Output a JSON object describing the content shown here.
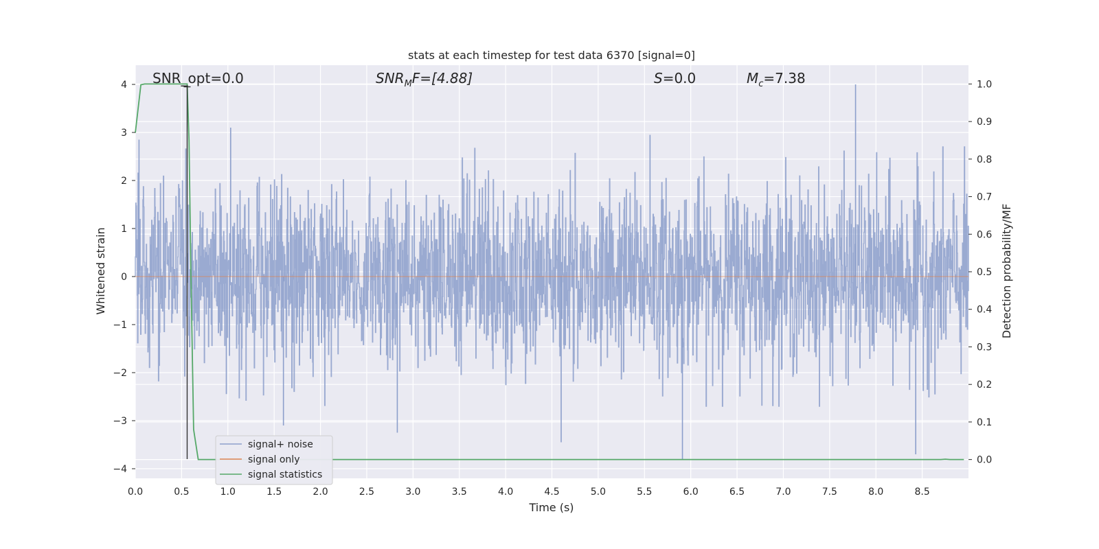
{
  "chart_data": {
    "type": "line",
    "title": "stats at each timestep for test data 6370 [signal=0]",
    "xlabel": "Time (s)",
    "ylabel": "Whitened strain",
    "y2label": "Detection probability/MF",
    "xlim": [
      0.0,
      9.0
    ],
    "ylim": [
      -4.2,
      4.4
    ],
    "y2lim": [
      -0.05,
      1.05
    ],
    "xticks": [
      "0.0",
      "0.5",
      "1.0",
      "1.5",
      "2.0",
      "2.5",
      "3.0",
      "3.5",
      "4.0",
      "4.5",
      "5.0",
      "5.5",
      "6.0",
      "6.5",
      "7.0",
      "7.5",
      "8.0",
      "8.5"
    ],
    "yticks": [
      "4",
      "3",
      "2",
      "1",
      "0",
      "−1",
      "−2",
      "−3",
      "−4"
    ],
    "y2ticks": [
      "1.0",
      "0.9",
      "0.8",
      "0.7",
      "0.6",
      "0.5",
      "0.4",
      "0.3",
      "0.2",
      "0.1",
      "0.0"
    ],
    "grid": true,
    "legend_position": "lower-left",
    "annotations": {
      "snr_opt": "SNR_opt=0.0",
      "snr_mf_main": "SNR",
      "snr_mf_sub": "M",
      "snr_mf_rest": "F=[4.88]",
      "s_main": "S",
      "s_rest": "=0.0",
      "mc_main": "M",
      "mc_sub": "c",
      "mc_rest": "=7.38"
    },
    "marker": {
      "x": 0.56,
      "ymin": -3.8,
      "ymax": 3.95
    },
    "series": [
      {
        "name": "signal+ noise",
        "axis": "left",
        "color": "#8c9fcb",
        "noise_summary": {
          "typical_abs": 1.6,
          "peaks": [
            {
              "x": 0.04,
              "y": 2.85
            },
            {
              "x": 1.03,
              "y": 3.1
            },
            {
              "x": 1.6,
              "y": -3.1
            },
            {
              "x": 2.83,
              "y": -3.25
            },
            {
              "x": 4.6,
              "y": -3.45
            },
            {
              "x": 5.91,
              "y": -3.8
            },
            {
              "x": 7.78,
              "y": 4.0
            },
            {
              "x": 8.43,
              "y": -3.7
            },
            {
              "x": 5.56,
              "y": 2.95
            }
          ]
        }
      },
      {
        "name": "signal only",
        "axis": "left",
        "color": "#dd8452",
        "values_note": "flat at 0"
      },
      {
        "name": "signal statistics",
        "axis": "right",
        "color": "#55a868",
        "x": [
          0.0,
          0.06,
          0.1,
          0.2,
          0.3,
          0.4,
          0.5,
          0.56,
          0.58,
          0.6,
          0.63,
          0.68,
          1.0,
          2.0,
          3.0,
          4.0,
          5.0,
          6.0,
          7.0,
          8.0,
          8.5,
          8.7,
          8.75,
          8.8,
          8.95
        ],
        "values": [
          0.87,
          0.998,
          1.0,
          1.0,
          1.0,
          1.0,
          1.0,
          1.0,
          0.85,
          0.5,
          0.08,
          0.0,
          0.0,
          0.0,
          0.0,
          0.0,
          0.0,
          0.0,
          0.0,
          0.0,
          0.0,
          0.0,
          0.001,
          0.0,
          0.0
        ]
      }
    ]
  }
}
